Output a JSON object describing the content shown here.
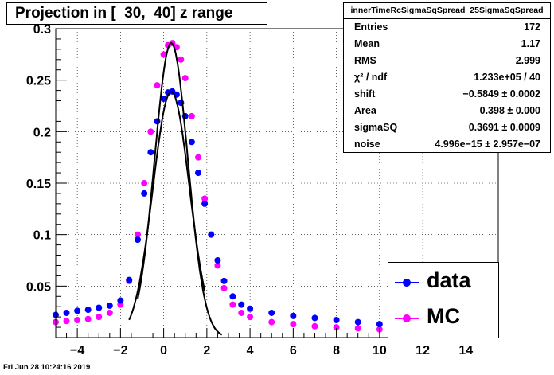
{
  "title": "Projection in [  30,  40] z range",
  "stats": {
    "name": "innerTimeRcSigmaSqSpread_25SigmaSqSpread",
    "rows": [
      {
        "label": "Entries",
        "value": "172"
      },
      {
        "label": "Mean",
        "value": "1.17"
      },
      {
        "label": "RMS",
        "value": "2.999"
      },
      {
        "label": "χ² / ndf",
        "value": "1.233e+05 / 40"
      },
      {
        "label": "shift",
        "value": "−0.5849 ± 0.0002"
      },
      {
        "label": "Area",
        "value": "0.398 ± 0.000"
      },
      {
        "label": "sigmaSQ",
        "value": "0.3691 ± 0.0009"
      },
      {
        "label": "noise",
        "value": "4.996e−15 ± 2.957e−07"
      }
    ]
  },
  "legend": {
    "entries": [
      {
        "label": "data",
        "color": "#0000ff"
      },
      {
        "label": "MC",
        "color": "#ff00ff"
      }
    ]
  },
  "timestamp": "Fri Jun 28 10:24:16 2019",
  "chart_data": {
    "type": "scatter",
    "title": "Projection in [  30,  40] z range",
    "xlim": [
      -5,
      15.5
    ],
    "ylim": [
      0,
      0.3
    ],
    "grid": true,
    "legend_position": "bottom-right",
    "x_ticks": [
      -4,
      -2,
      0,
      2,
      4,
      6,
      8,
      10,
      12,
      14
    ],
    "y_ticks": [
      0.05,
      0.1,
      0.15,
      0.2,
      0.25,
      0.3
    ],
    "x_tick_labels": [
      "−4",
      "−2",
      "0",
      "2",
      "4",
      "6",
      "8",
      "10",
      "12",
      "14"
    ],
    "y_tick_labels": [
      "0.05",
      "0.1",
      "0.15",
      "0.2",
      "0.25",
      "0.3"
    ],
    "series": [
      {
        "name": "data",
        "color": "#0000ff",
        "x": [
          -5.0,
          -4.5,
          -4.0,
          -3.5,
          -3.0,
          -2.5,
          -2.0,
          -1.6,
          -1.2,
          -0.9,
          -0.6,
          -0.3,
          0.0,
          0.2,
          0.4,
          0.6,
          0.8,
          1.0,
          1.3,
          1.6,
          1.9,
          2.2,
          2.5,
          2.8,
          3.2,
          3.6,
          4.0,
          5.0,
          6.0,
          7.0,
          8.0,
          9.0,
          10.0,
          11.0,
          12.0,
          13.0,
          14.0,
          15.0
        ],
        "y": [
          0.022,
          0.024,
          0.026,
          0.027,
          0.029,
          0.031,
          0.036,
          0.056,
          0.095,
          0.14,
          0.18,
          0.21,
          0.232,
          0.238,
          0.239,
          0.236,
          0.228,
          0.215,
          0.19,
          0.16,
          0.13,
          0.1,
          0.075,
          0.055,
          0.04,
          0.032,
          0.028,
          0.024,
          0.021,
          0.019,
          0.017,
          0.015,
          0.013,
          0.011,
          0.009,
          0.007,
          0.006,
          0.005
        ]
      },
      {
        "name": "MC",
        "color": "#ff00ff",
        "x": [
          -5.0,
          -4.5,
          -4.0,
          -3.5,
          -3.0,
          -2.5,
          -2.0,
          -1.6,
          -1.2,
          -0.9,
          -0.6,
          -0.3,
          0.0,
          0.2,
          0.4,
          0.6,
          0.8,
          1.0,
          1.3,
          1.6,
          1.9,
          2.2,
          2.5,
          2.8,
          3.2,
          3.6,
          4.0,
          5.0,
          6.0,
          7.0,
          8.0,
          9.0,
          10.0,
          11.0,
          12.0,
          13.0,
          14.0,
          15.0
        ],
        "y": [
          0.015,
          0.016,
          0.017,
          0.018,
          0.02,
          0.024,
          0.032,
          0.055,
          0.1,
          0.15,
          0.2,
          0.245,
          0.275,
          0.284,
          0.286,
          0.282,
          0.27,
          0.252,
          0.215,
          0.175,
          0.135,
          0.1,
          0.07,
          0.048,
          0.032,
          0.024,
          0.02,
          0.015,
          0.013,
          0.011,
          0.01,
          0.009,
          0.008,
          0.007,
          0.006,
          0.005,
          0.004,
          0.004
        ]
      }
    ],
    "fits": [
      {
        "peak_x": 0.35,
        "peak_y": 0.239,
        "sigma": 0.85,
        "x_range": [
          -1.6,
          1.9
        ]
      },
      {
        "peak_x": 0.35,
        "peak_y": 0.286,
        "sigma": 0.77,
        "x_range": [
          -1.2,
          2.7
        ]
      }
    ]
  }
}
